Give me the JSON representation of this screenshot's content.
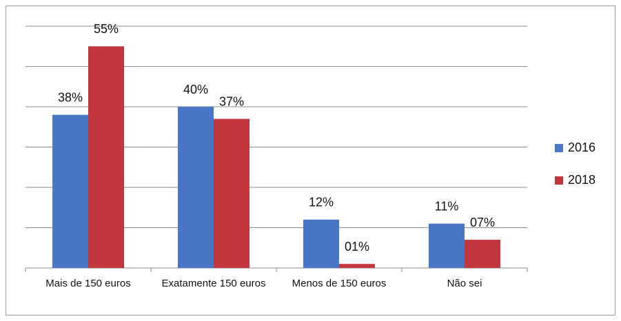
{
  "chart_data": {
    "type": "bar",
    "categories": [
      "Mais de 150 euros",
      "Exatamente 150 euros",
      "Menos de 150 euros",
      "Não sei"
    ],
    "series": [
      {
        "name": "2016",
        "color": "#4a76c8",
        "values": [
          38,
          40,
          12,
          11
        ],
        "value_labels": [
          "38%",
          "40%",
          "12%",
          "11%"
        ]
      },
      {
        "name": "2018",
        "color": "#c2373e",
        "values": [
          55,
          37,
          1,
          7
        ],
        "value_labels": [
          "55%",
          "37%",
          "01%",
          "07%"
        ]
      }
    ],
    "ylim": [
      0,
      60
    ],
    "yticks": [
      0,
      10,
      20,
      30,
      40,
      50,
      60
    ],
    "grid": true,
    "legend": "right"
  }
}
